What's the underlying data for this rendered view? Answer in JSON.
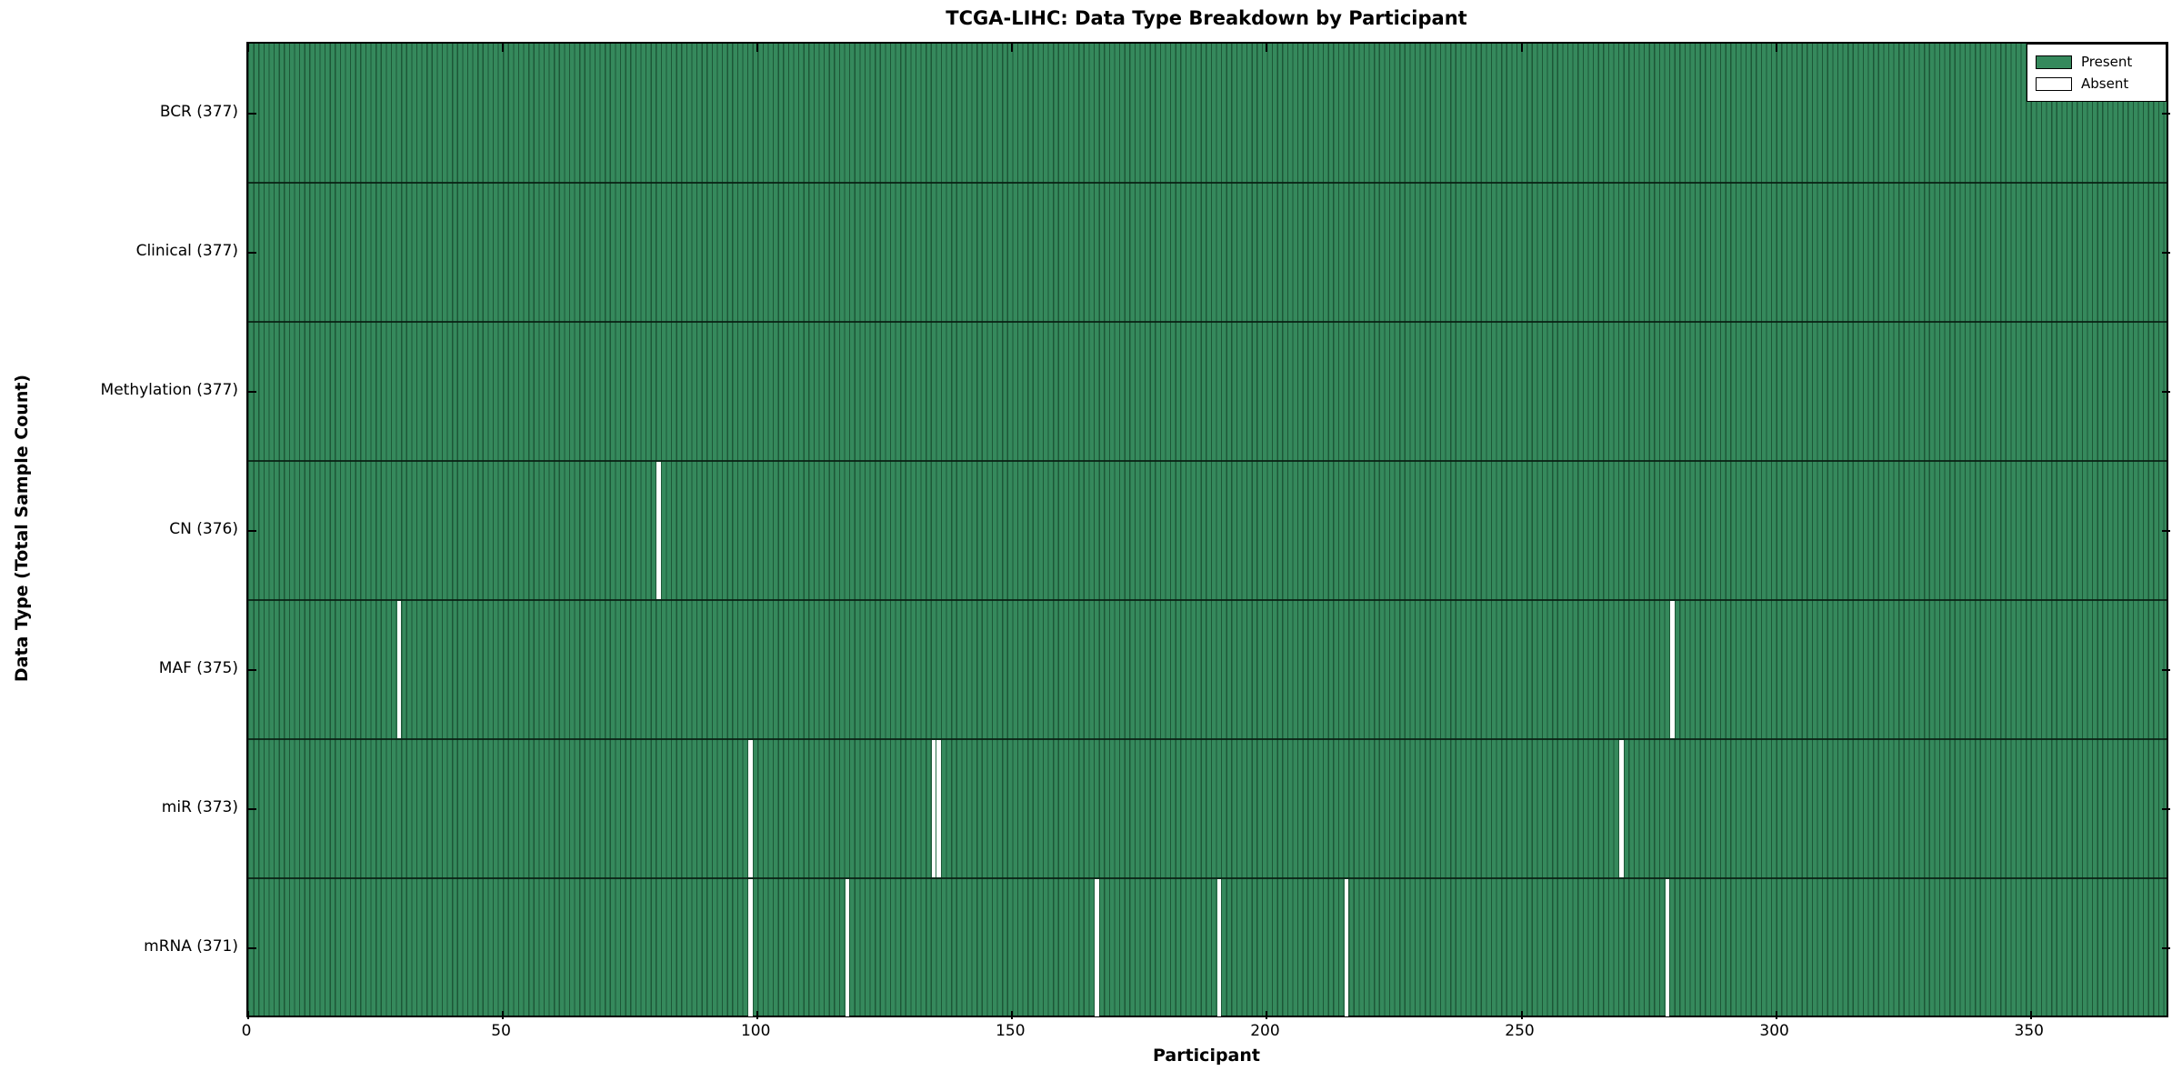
{
  "chart_data": {
    "type": "heatmap",
    "title": "TCGA-LIHC: Data Type Breakdown by Participant",
    "xlabel": "Participant",
    "ylabel": "Data Type (Total Sample Count)",
    "x_ticks": [
      0,
      50,
      100,
      150,
      200,
      250,
      300,
      350
    ],
    "x_range": [
      0,
      377
    ],
    "n_participants": 377,
    "grid": false,
    "legend_position": "upper-right",
    "legend": [
      {
        "label": "Present",
        "color": "#35895c"
      },
      {
        "label": "Absent",
        "color": "#ffffff"
      }
    ],
    "colors": {
      "present_fill": "#35895c",
      "bar_edge": "#1d5737",
      "absent": "#ffffff",
      "axis": "#000000"
    },
    "rows": [
      {
        "label": "BCR (377)",
        "data_type": "BCR",
        "total_samples": 377,
        "absent_participants": []
      },
      {
        "label": "Clinical (377)",
        "data_type": "Clinical",
        "total_samples": 377,
        "absent_participants": []
      },
      {
        "label": "Methylation (377)",
        "data_type": "Methylation",
        "total_samples": 377,
        "absent_participants": []
      },
      {
        "label": "CN (376)",
        "data_type": "CN",
        "total_samples": 376,
        "absent_participants": [
          80
        ]
      },
      {
        "label": "MAF (375)",
        "data_type": "MAF",
        "total_samples": 375,
        "absent_participants": [
          29,
          279
        ]
      },
      {
        "label": "miR (373)",
        "data_type": "miR",
        "total_samples": 373,
        "absent_participants": [
          98,
          134,
          135,
          269
        ]
      },
      {
        "label": "mRNA (371)",
        "data_type": "mRNA",
        "total_samples": 371,
        "absent_participants": [
          98,
          117,
          166,
          190,
          215,
          278
        ]
      }
    ]
  }
}
